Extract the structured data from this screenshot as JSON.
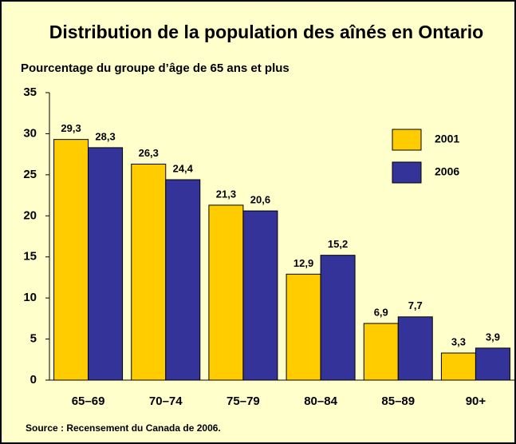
{
  "chart_data": {
    "type": "bar",
    "title": "Distribution de la population des aînés en Ontario",
    "subtitle": "Pourcentage du groupe d’âge de 65 ans et plus",
    "note": "Source : Recensement du Canada de 2006.",
    "categories": [
      "65–69",
      "70–74",
      "75–79",
      "80–84",
      "85–89",
      "90+"
    ],
    "series": [
      {
        "name": "2001",
        "color": "#ffcc00",
        "values": [
          29.3,
          26.3,
          21.3,
          12.9,
          6.9,
          3.3
        ],
        "value_labels": [
          "29,3",
          "26,3",
          "21,3",
          "12,9",
          "6,9",
          "3,3"
        ]
      },
      {
        "name": "2006",
        "color": "#333399",
        "values": [
          28.3,
          24.4,
          20.6,
          15.2,
          7.7,
          3.9
        ],
        "value_labels": [
          "28,3",
          "24,4",
          "20,6",
          "15,2",
          "7,7",
          "3,9"
        ]
      }
    ],
    "ylim": [
      0,
      35
    ],
    "yticks": [
      0,
      5,
      10,
      15,
      20,
      25,
      30,
      35
    ],
    "legend": "upper right"
  }
}
